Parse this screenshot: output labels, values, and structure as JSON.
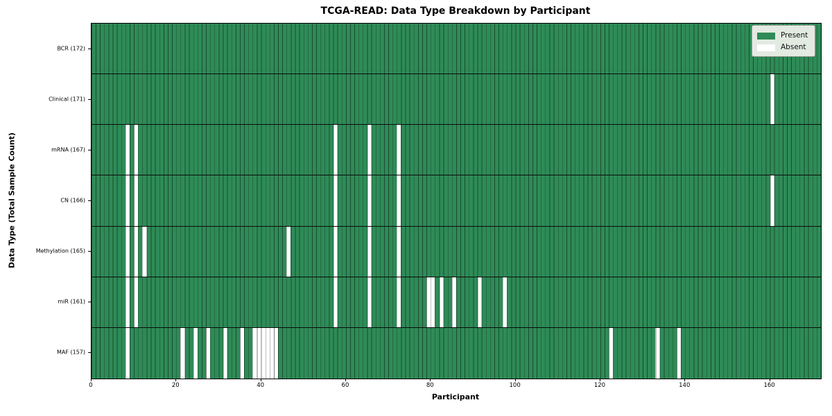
{
  "colors": {
    "present": "#2e8b57",
    "absent": "#ffffff",
    "cell_border": "rgba(10,25,15,0.55)",
    "row_separator": "#0a0a0a",
    "plot_border": "#000000",
    "legend_bg": "#e2eae2"
  },
  "chart_data": {
    "type": "heatmap",
    "title": "TCGA-READ: Data Type Breakdown by Participant",
    "xlabel": "Participant",
    "ylabel": "Data Type (Total Sample Count)",
    "n_participants": 172,
    "x_ticks": [
      0,
      20,
      40,
      60,
      80,
      100,
      120,
      140,
      160
    ],
    "xlim": [
      0,
      172
    ],
    "grid": false,
    "legend_position": "upper right",
    "legend": [
      "Present",
      "Absent"
    ],
    "value_encoding": {
      "present": 1,
      "absent": 0
    },
    "rows": [
      {
        "label": "BCR (172)",
        "data_type": "BCR",
        "total_samples": 172,
        "absent_participants": []
      },
      {
        "label": "Clinical (171)",
        "data_type": "Clinical",
        "total_samples": 171,
        "absent_participants": [
          160
        ]
      },
      {
        "label": "mRNA (167)",
        "data_type": "mRNA",
        "total_samples": 167,
        "absent_participants": [
          8,
          10,
          57,
          65,
          72
        ]
      },
      {
        "label": "CN (166)",
        "data_type": "CN",
        "total_samples": 166,
        "absent_participants": [
          8,
          10,
          57,
          65,
          72,
          160
        ]
      },
      {
        "label": "Methylation (165)",
        "data_type": "Methylation",
        "total_samples": 165,
        "absent_participants": [
          8,
          10,
          12,
          46,
          57,
          65,
          72
        ]
      },
      {
        "label": "miR (161)",
        "data_type": "miR",
        "total_samples": 161,
        "absent_participants": [
          8,
          10,
          57,
          65,
          72,
          79,
          80,
          82,
          85,
          91,
          97
        ]
      },
      {
        "label": "MAF (157)",
        "data_type": "MAF",
        "total_samples": 157,
        "absent_participants": [
          8,
          21,
          24,
          27,
          31,
          35,
          38,
          39,
          40,
          41,
          42,
          43,
          122,
          133,
          138
        ]
      }
    ]
  }
}
